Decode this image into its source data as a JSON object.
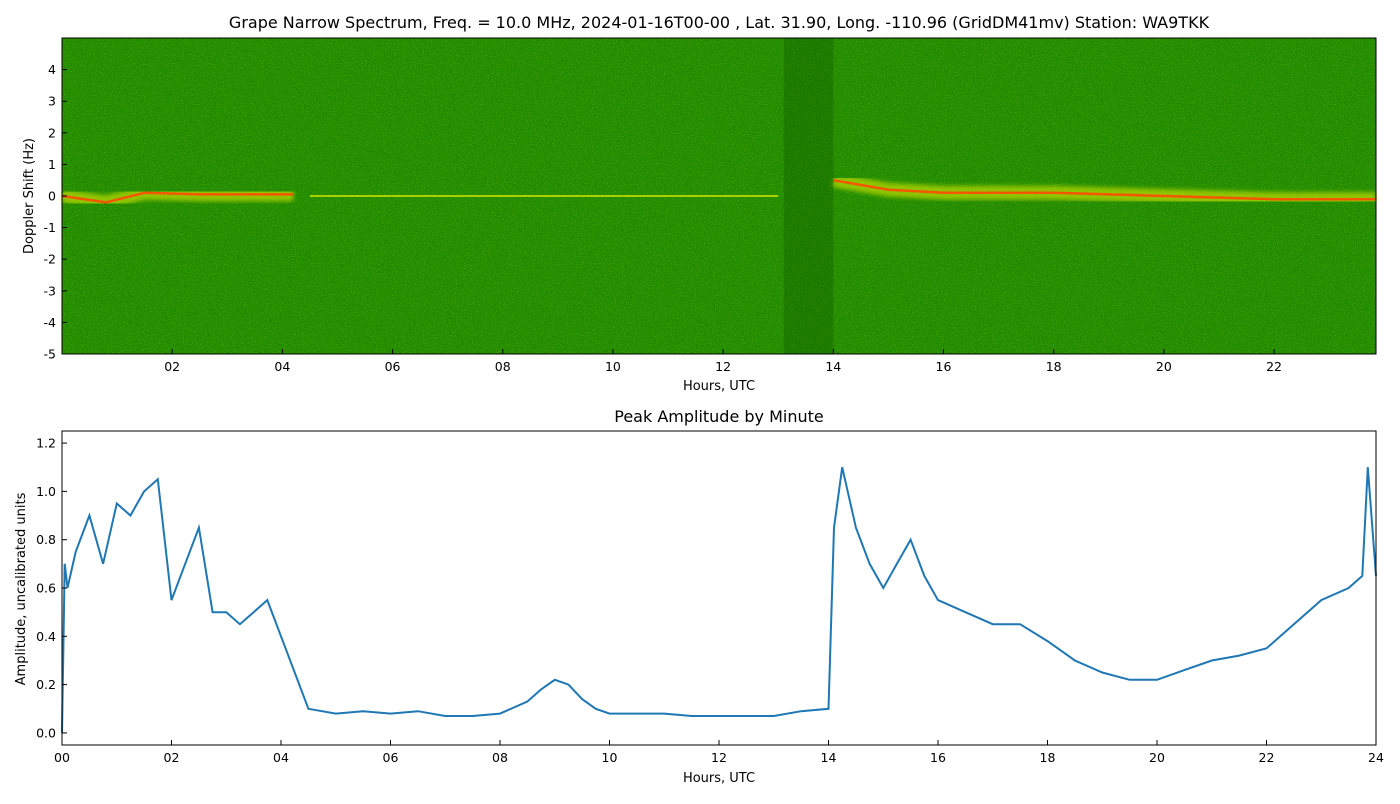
{
  "colors": {
    "spectrum_background": "#1f8a00",
    "spectrum_yellow": "#e8f000",
    "spectrum_red": "#ff4a00",
    "line_series": "#1f77b4",
    "axis": "#000000"
  },
  "chart_data": [
    {
      "type": "heatmap",
      "title": "Grape Narrow Spectrum, Freq. = 10.0 MHz, 2024-01-16T00-00 , Lat.  31.90, Long. -110.96 (GridDM41mv) Station: WA9TKK",
      "xlabel": "Hours, UTC",
      "ylabel": "Doppler Shift (Hz)",
      "xlim": [
        0,
        23.85
      ],
      "ylim": [
        -5,
        5
      ],
      "x_ticks": [
        "02",
        "04",
        "06",
        "08",
        "10",
        "12",
        "14",
        "16",
        "18",
        "20",
        "22"
      ],
      "x_tick_values": [
        2,
        4,
        6,
        8,
        10,
        12,
        14,
        16,
        18,
        20,
        22
      ],
      "y_ticks": [
        "-5",
        "-4",
        "-3",
        "-2",
        "-1",
        "0",
        "1",
        "2",
        "3",
        "4"
      ],
      "y_tick_values": [
        -5,
        -4,
        -3,
        -2,
        -1,
        0,
        1,
        2,
        3,
        4
      ],
      "colormap": "green-yellow-red",
      "features": [
        {
          "name": "doppler trace",
          "x": [
            0,
            0.8,
            1.5,
            2.5,
            4.2
          ],
          "y": [
            0,
            -0.2,
            0.1,
            0.05,
            0.05
          ],
          "intensity": "high"
        },
        {
          "name": "weak segments",
          "x": [
            4.5,
            13
          ],
          "y": [
            0,
            0
          ],
          "intensity": "low"
        },
        {
          "name": "doppler trace",
          "x": [
            14,
            15,
            16,
            18,
            20,
            22,
            23.85
          ],
          "y": [
            0.5,
            0.2,
            0.1,
            0.1,
            0.0,
            -0.1,
            -0.1
          ],
          "intensity": "high"
        },
        {
          "name": "dark band",
          "x": [
            13.1,
            14
          ],
          "intensity": "low"
        }
      ]
    },
    {
      "type": "line",
      "title": "Peak Amplitude by Minute",
      "xlabel": "Hours, UTC",
      "ylabel": "Amplitude, uncalibrated units",
      "xlim": [
        0,
        24
      ],
      "ylim": [
        -0.05,
        1.25
      ],
      "x_ticks": [
        "00",
        "02",
        "04",
        "06",
        "08",
        "10",
        "12",
        "14",
        "16",
        "18",
        "20",
        "22",
        "24"
      ],
      "x_tick_values": [
        0,
        2,
        4,
        6,
        8,
        10,
        12,
        14,
        16,
        18,
        20,
        22,
        24
      ],
      "y_ticks": [
        "0.0",
        "0.2",
        "0.4",
        "0.6",
        "0.8",
        "1.0",
        "1.2"
      ],
      "y_tick_values": [
        0,
        0.2,
        0.4,
        0.6,
        0.8,
        1.0,
        1.2
      ],
      "series": [
        {
          "x": [
            0,
            0.05,
            0.1,
            0.25,
            0.5,
            0.75,
            1.0,
            1.25,
            1.5,
            1.75,
            2.0,
            2.25,
            2.5,
            2.75,
            3.0,
            3.25,
            3.5,
            3.75,
            4.0,
            4.25,
            4.5,
            5.0,
            5.5,
            6.0,
            6.5,
            7.0,
            7.5,
            8.0,
            8.5,
            8.75,
            9.0,
            9.25,
            9.5,
            9.75,
            10.0,
            10.5,
            11.0,
            11.5,
            12.0,
            12.5,
            13.0,
            13.5,
            14.0,
            14.1,
            14.25,
            14.5,
            14.75,
            15.0,
            15.25,
            15.5,
            15.75,
            16.0,
            16.5,
            17.0,
            17.5,
            18.0,
            18.5,
            19.0,
            19.5,
            20.0,
            20.5,
            21.0,
            21.5,
            22.0,
            22.5,
            23.0,
            23.5,
            23.75,
            23.85,
            24.0
          ],
          "y": [
            0.0,
            0.7,
            0.6,
            0.75,
            0.9,
            0.7,
            0.95,
            0.9,
            1.0,
            1.05,
            0.55,
            0.7,
            0.85,
            0.5,
            0.5,
            0.45,
            0.5,
            0.55,
            0.4,
            0.25,
            0.1,
            0.08,
            0.09,
            0.08,
            0.09,
            0.07,
            0.07,
            0.08,
            0.13,
            0.18,
            0.22,
            0.2,
            0.14,
            0.1,
            0.08,
            0.08,
            0.08,
            0.07,
            0.07,
            0.07,
            0.07,
            0.09,
            0.1,
            0.85,
            1.1,
            0.85,
            0.7,
            0.6,
            0.7,
            0.8,
            0.65,
            0.55,
            0.5,
            0.45,
            0.45,
            0.38,
            0.3,
            0.25,
            0.22,
            0.22,
            0.26,
            0.3,
            0.32,
            0.35,
            0.45,
            0.55,
            0.6,
            0.65,
            1.1,
            0.65
          ]
        }
      ]
    }
  ]
}
